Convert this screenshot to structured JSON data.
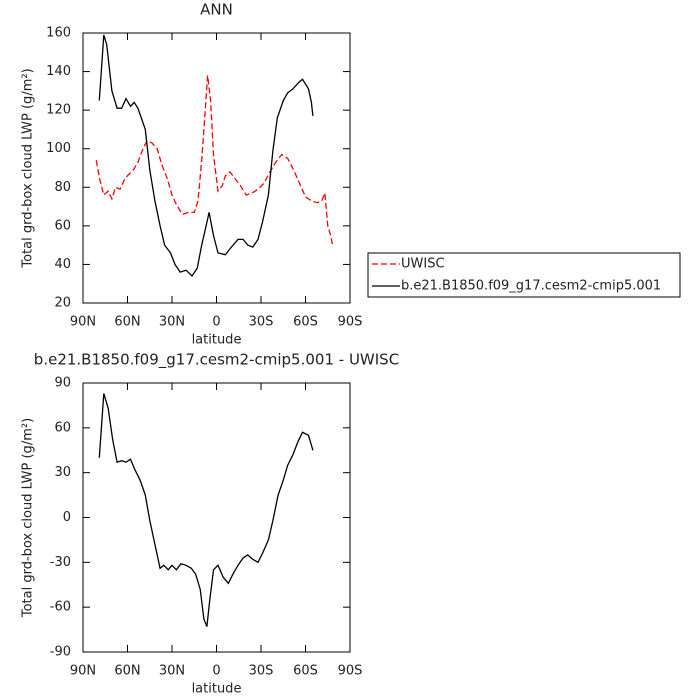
{
  "chart_data": [
    {
      "type": "line",
      "title": "ANN",
      "xlabel": "latitude",
      "ylabel": "Total grd-box cloud LWP (g/m²)",
      "xlim": [
        90,
        -90
      ],
      "ylim": [
        20,
        160
      ],
      "xticks": [
        {
          "value": 90,
          "label": "90N"
        },
        {
          "value": 60,
          "label": "60N"
        },
        {
          "value": 30,
          "label": "30N"
        },
        0,
        {
          "value": -30,
          "label": "30S"
        },
        {
          "value": -60,
          "label": "60S"
        },
        {
          "value": -90,
          "label": "90S"
        }
      ],
      "yticks": [
        20,
        40,
        60,
        80,
        100,
        120,
        140,
        160
      ],
      "legend": "right",
      "series": [
        {
          "name": "UWISC",
          "color": "#ff0000",
          "style": "dashed",
          "x": [
            81,
            79,
            76,
            73,
            70.5,
            68,
            65,
            62,
            60,
            56,
            53,
            50,
            47,
            43.5,
            40,
            37,
            33,
            30,
            27,
            23,
            19,
            15,
            12.5,
            10,
            8,
            6,
            4,
            2,
            -1,
            -4,
            -6,
            -9,
            -12,
            -16,
            -20,
            -24,
            -28,
            -32,
            -36,
            -40,
            -44,
            -48,
            -52,
            -56,
            -60,
            -64,
            -68,
            -71,
            -73,
            -75,
            -77,
            -78.5
          ],
          "values": [
            94,
            85,
            76,
            78,
            74,
            80,
            79,
            84,
            86,
            89,
            93,
            99,
            104,
            103,
            100,
            92,
            84,
            76,
            71,
            66,
            67,
            67,
            73,
            94,
            115,
            138,
            125,
            97,
            78,
            81,
            86,
            88,
            85,
            81,
            76,
            77,
            79,
            82,
            88,
            93,
            97,
            95,
            89,
            82,
            75,
            73,
            72,
            73,
            77,
            60,
            55,
            49
          ]
        },
        {
          "name": "b.e21.B1850.f09_g17.cesm2-cmip5.001",
          "color": "#000000",
          "style": "solid",
          "x": [
            79,
            76,
            74,
            70.5,
            67,
            64,
            61,
            58,
            55.5,
            53,
            48,
            45,
            41.5,
            38,
            35,
            31,
            28,
            24.5,
            20.5,
            16.5,
            13,
            10,
            7,
            5,
            2,
            -1,
            -6,
            -10,
            -14.5,
            -18,
            -21,
            -24.5,
            -28,
            -31,
            -35,
            -38,
            -41,
            -45,
            -48,
            -51.5,
            -55,
            -58,
            -62,
            -64,
            -65
          ],
          "values": [
            125,
            159,
            154,
            130,
            121,
            121,
            126,
            122,
            124,
            121,
            110,
            89,
            73,
            60,
            50,
            46,
            40,
            36,
            37,
            34,
            38,
            50,
            60,
            67,
            55,
            46,
            45,
            49,
            53,
            53,
            50,
            49,
            53,
            62,
            76,
            99,
            116,
            125,
            129,
            131,
            134,
            136,
            131,
            124,
            117
          ]
        }
      ]
    },
    {
      "type": "line",
      "title": "b.e21.B1850.f09_g17.cesm2-cmip5.001 - UWISC",
      "xlabel": "latitude",
      "ylabel": "Total grd-box cloud LWP (g/m²)",
      "xlim": [
        90,
        -90
      ],
      "ylim": [
        -90,
        90
      ],
      "xticks": [
        {
          "value": 90,
          "label": "90N"
        },
        {
          "value": 60,
          "label": "60N"
        },
        {
          "value": 30,
          "label": "30N"
        },
        0,
        {
          "value": -30,
          "label": "30S"
        },
        {
          "value": -60,
          "label": "60S"
        },
        {
          "value": -90,
          "label": "90S"
        }
      ],
      "yticks": [
        -90,
        -60,
        -30,
        0,
        30,
        60,
        90
      ],
      "series": [
        {
          "color": "#000000",
          "style": "solid",
          "x": [
            79,
            76,
            73,
            70,
            67,
            64,
            61,
            58,
            55,
            51.5,
            48,
            45,
            41.5,
            38,
            35.5,
            32.5,
            30,
            27,
            24,
            20.5,
            17,
            14,
            11,
            8.5,
            6.5,
            4.5,
            2,
            -1,
            -4.5,
            -8,
            -11,
            -14.5,
            -18,
            -21,
            -24.5,
            -28,
            -31,
            -35,
            -38,
            -41.5,
            -45,
            -48,
            -51.5,
            -55,
            -58,
            -62,
            -65
          ],
          "values": [
            40,
            83,
            73,
            52,
            37,
            38,
            37,
            39,
            32,
            25,
            15,
            -2,
            -18,
            -34,
            -32,
            -35,
            -32,
            -35,
            -31,
            -32,
            -34,
            -38,
            -48,
            -68,
            -73,
            -55,
            -35,
            -32,
            -40,
            -44,
            -38,
            -32,
            -27,
            -25,
            -28,
            -30,
            -24,
            -15,
            -2,
            15,
            25,
            35,
            42,
            51,
            57,
            55,
            45
          ]
        }
      ]
    }
  ]
}
